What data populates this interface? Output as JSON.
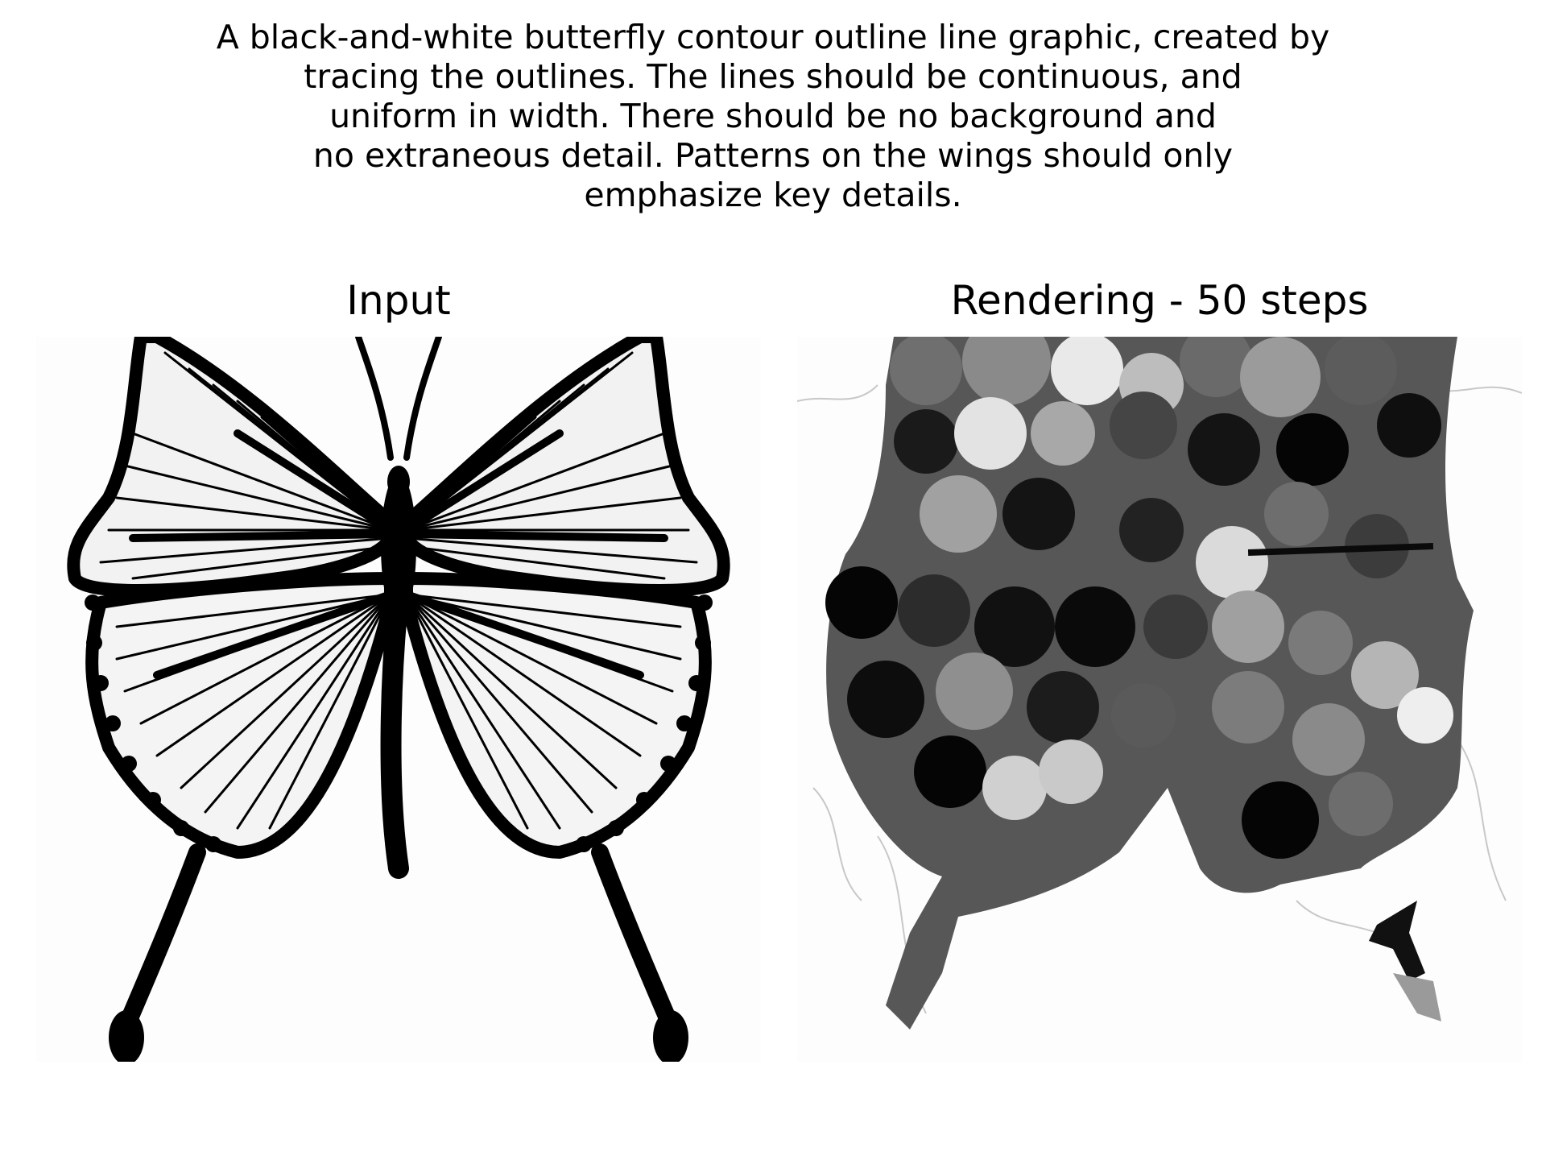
{
  "caption": {
    "lines": [
      "A black-and-white butterfly contour outline line graphic, created by",
      "tracing the outlines. The lines should be continuous, and",
      "uniform in width. There should be no background and",
      "no extraneous detail. Patterns on the wings should only",
      "emphasize key details."
    ]
  },
  "panels": {
    "left_title": "Input",
    "right_title": "Rendering - 50 steps"
  },
  "colors": {
    "ink": "#000000",
    "background": "#ffffff"
  }
}
